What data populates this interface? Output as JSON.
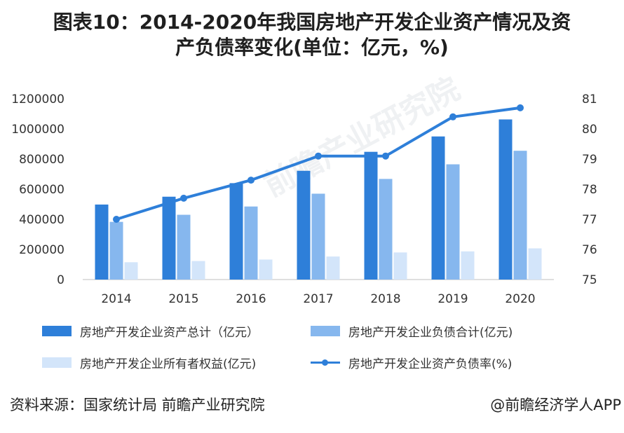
{
  "title": {
    "line1": "图表10：2014-2020年我国房地产开发企业资产情况及资",
    "line2": "产负债率变化(单位：亿元，%)"
  },
  "watermark": "前瞻产业研究院",
  "colors": {
    "total_assets": "#2e7fd9",
    "liabilities": "#86b7ee",
    "equity": "#d3e5fa",
    "ratio_line": "#2e7fd9"
  },
  "chart_data": {
    "type": "bar",
    "categories": [
      "2014",
      "2015",
      "2016",
      "2017",
      "2018",
      "2019",
      "2020"
    ],
    "series": [
      {
        "name": "房地产开发企业资产总计（亿元）",
        "type": "bar",
        "axis": "left",
        "values": [
          498000,
          550000,
          640000,
          722000,
          848000,
          950000,
          1063000
        ]
      },
      {
        "name": "房地产开发企业负债合计(亿元)",
        "type": "bar",
        "axis": "left",
        "values": [
          383000,
          430000,
          485000,
          570000,
          668000,
          765000,
          855000
        ]
      },
      {
        "name": "房地产开发企业所有者权益(亿元)",
        "type": "bar",
        "axis": "left",
        "values": [
          115000,
          123000,
          133000,
          153000,
          180000,
          187000,
          207000
        ]
      },
      {
        "name": "房地产开发企业资产负债率(%)",
        "type": "line",
        "axis": "right",
        "values": [
          77.0,
          77.7,
          78.3,
          79.1,
          79.1,
          80.4,
          80.7
        ]
      }
    ],
    "y_left": {
      "min": 0,
      "max": 1200000,
      "ticks": [
        "0",
        "200000",
        "400000",
        "600000",
        "800000",
        "1000000",
        "1200000"
      ]
    },
    "y_right": {
      "min": 75,
      "max": 81,
      "ticks": [
        "75",
        "76",
        "77",
        "78",
        "79",
        "80",
        "81"
      ]
    },
    "grid": false,
    "legend_position": "bottom"
  },
  "legend": [
    {
      "label": "房地产开发企业资产总计（亿元）"
    },
    {
      "label": "房地产开发企业负债合计(亿元)"
    },
    {
      "label": "房地产开发企业所有者权益(亿元)"
    },
    {
      "label": "房地产开发企业资产负债率(%)"
    }
  ],
  "footer": {
    "source": "资料来源：国家统计局 前瞻产业研究院",
    "credit": "@前瞻经济学人APP"
  }
}
